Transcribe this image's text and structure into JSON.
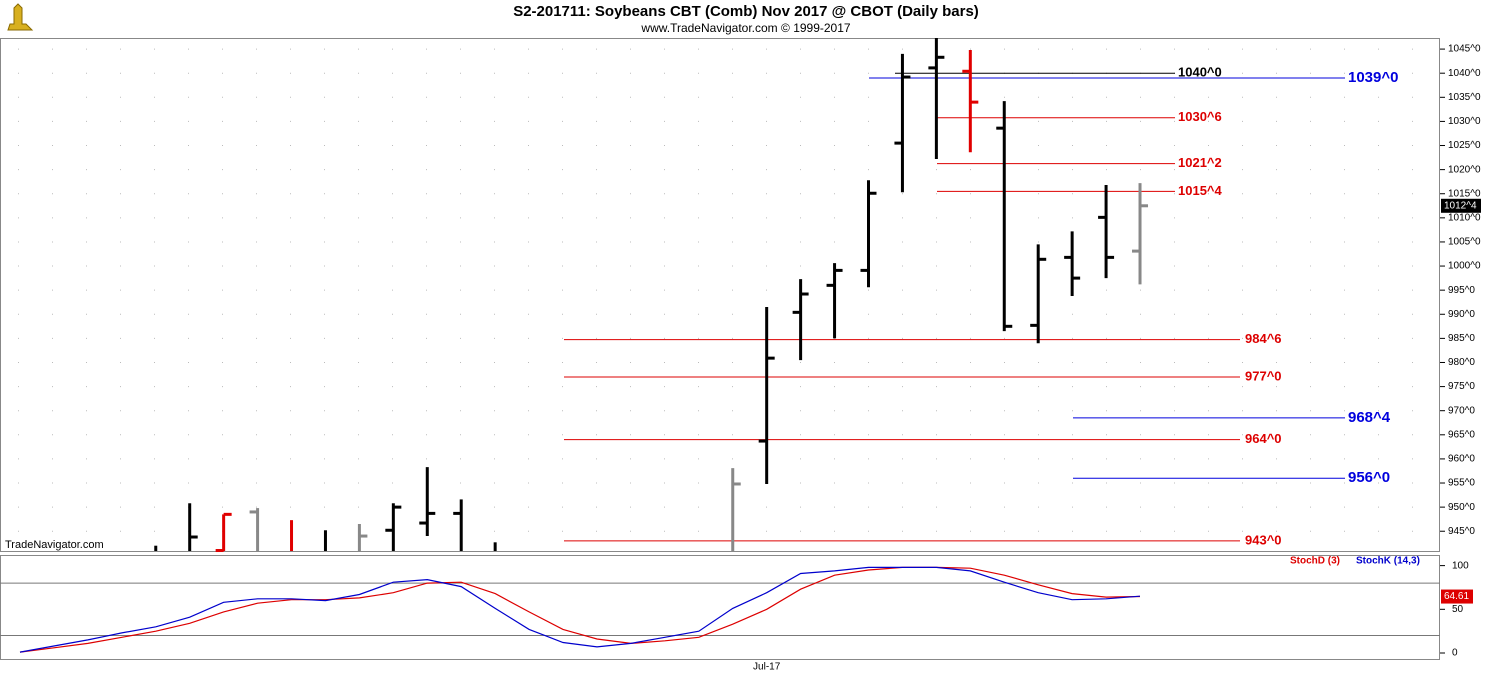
{
  "chart_data": [
    {
      "type": "ohlc",
      "title": "S2-201711:  Soybeans CBT (Comb) Nov 2017 @ CBOT  (Daily bars)",
      "subtitle": "www.TradeNavigator.com © 1999-2017",
      "watermark": "TradeNavigator.com",
      "categories": [
        null,
        null,
        null,
        null,
        null,
        null,
        null,
        null,
        null,
        null,
        null,
        null,
        null,
        null,
        null,
        null,
        null,
        null,
        null,
        null,
        null,
        null,
        "Jul-17",
        null,
        null,
        null,
        null,
        null,
        null,
        null,
        null,
        null,
        null,
        null
      ],
      "open": [
        null,
        null,
        null,
        null,
        null,
        null,
        941,
        949,
        null,
        null,
        null,
        945.2,
        946.7,
        948.7,
        null,
        null,
        null,
        null,
        null,
        null,
        null,
        null,
        963.7,
        990.4,
        996,
        999.1,
        1025.5,
        1041.1,
        1040.4,
        1028.6,
        987.7,
        1001.8,
        1010.1,
        1003.1
      ],
      "high": [
        null,
        null,
        null,
        null,
        942,
        950.8,
        948.5,
        949.8,
        947.3,
        945.2,
        946.5,
        950.8,
        958.3,
        951.6,
        942.7,
        null,
        null,
        null,
        null,
        null,
        null,
        958.1,
        991.5,
        997.3,
        1000.6,
        1017.8,
        1044,
        1047.3,
        1044.8,
        1034.2,
        1004.5,
        1007.2,
        1016.8,
        1017.2
      ],
      "low": [
        null,
        null,
        null,
        null,
        null,
        null,
        null,
        null,
        null,
        null,
        null,
        null,
        944,
        null,
        null,
        null,
        null,
        null,
        null,
        null,
        null,
        null,
        954.8,
        980.5,
        985,
        995.6,
        1015.3,
        1022.2,
        1023.6,
        986.5,
        984,
        993.8,
        997.5,
        996.2
      ],
      "close": [
        null,
        null,
        null,
        null,
        null,
        943.8,
        948.5,
        null,
        null,
        null,
        944,
        950,
        948.7,
        null,
        null,
        null,
        null,
        null,
        null,
        null,
        null,
        954.8,
        980.9,
        994.2,
        999.1,
        1015.1,
        1039.2,
        1043.3,
        1034,
        987.5,
        1001.4,
        997.5,
        1001.8,
        1012.5
      ],
      "colors": [
        "#000000",
        "#000000",
        "#000000",
        "#000000",
        "#000000",
        "#000000",
        "#e00000",
        "#888888",
        "#e00000",
        "#000000",
        "#888888",
        "#000000",
        "#000000",
        "#000000",
        "#000000",
        "#000000",
        "#000000",
        "#000000",
        "#000000",
        "#000000",
        "#000000",
        "#888888",
        "#000000",
        "#000000",
        "#000000",
        "#000000",
        "#000000",
        "#000000",
        "#e00000",
        "#000000",
        "#000000",
        "#000000",
        "#000000",
        "#888888"
      ],
      "last_price": {
        "value": 1012.5,
        "label": "1012^4"
      },
      "levels": [
        {
          "value": 1040,
          "label": "1040^0",
          "color": "#000000"
        },
        {
          "value": 1039,
          "label": "1039^0",
          "color": "#0000dd"
        },
        {
          "value": 1030.75,
          "label": "1030^6",
          "color": "#dd0000"
        },
        {
          "value": 1021.25,
          "label": "1021^2",
          "color": "#dd0000"
        },
        {
          "value": 1015.5,
          "label": "1015^4",
          "color": "#dd0000"
        },
        {
          "value": 984.75,
          "label": "984^6",
          "color": "#dd0000"
        },
        {
          "value": 977,
          "label": "977^0",
          "color": "#dd0000"
        },
        {
          "value": 968.5,
          "label": "968^4",
          "color": "#0000dd"
        },
        {
          "value": 964,
          "label": "964^0",
          "color": "#dd0000"
        },
        {
          "value": 956,
          "label": "956^0",
          "color": "#0000dd"
        },
        {
          "value": 943,
          "label": "943^0",
          "color": "#dd0000"
        }
      ],
      "ylim": [
        940.9,
        1047.3
      ],
      "yticks": [
        {
          "value": 945,
          "label": "945^0"
        },
        {
          "value": 950,
          "label": "950^0"
        },
        {
          "value": 955,
          "label": "955^0"
        },
        {
          "value": 960,
          "label": "960^0"
        },
        {
          "value": 965,
          "label": "965^0"
        },
        {
          "value": 970,
          "label": "970^0"
        },
        {
          "value": 975,
          "label": "975^0"
        },
        {
          "value": 980,
          "label": "980^0"
        },
        {
          "value": 985,
          "label": "985^0"
        },
        {
          "value": 990,
          "label": "990^0"
        },
        {
          "value": 995,
          "label": "995^0"
        },
        {
          "value": 1000,
          "label": "1000^0"
        },
        {
          "value": 1005,
          "label": "1005^0"
        },
        {
          "value": 1010,
          "label": "1010^0"
        },
        {
          "value": 1015,
          "label": "1015^0"
        },
        {
          "value": 1020,
          "label": "1020^0"
        },
        {
          "value": 1025,
          "label": "1025^0"
        },
        {
          "value": 1030,
          "label": "1030^0"
        },
        {
          "value": 1035,
          "label": "1035^0"
        },
        {
          "value": 1040,
          "label": "1040^0"
        },
        {
          "value": 1045,
          "label": "1045^0"
        }
      ],
      "grid": true
    },
    {
      "type": "line",
      "series": [
        {
          "name": "StochD (3)",
          "color": "#dd0000",
          "values": [
            1,
            6,
            11,
            18,
            25,
            34,
            47,
            57,
            61,
            61,
            63,
            69,
            80,
            81,
            68,
            47,
            27,
            16,
            11,
            14,
            18,
            33,
            50,
            73,
            89,
            95,
            98,
            98,
            97,
            89,
            78,
            68,
            64,
            64.61
          ]
        },
        {
          "name": "StochK (14,3)",
          "color": "#0000cc",
          "values": [
            1,
            8,
            15,
            23,
            30,
            41,
            58,
            62,
            62,
            60,
            67,
            81,
            84,
            76,
            51,
            27,
            12,
            7,
            11,
            18,
            25,
            51,
            69,
            91,
            94,
            98,
            98,
            98,
            94,
            81,
            69,
            61,
            62,
            65
          ]
        }
      ],
      "levels": [
        80,
        20
      ],
      "ylim": [
        -8,
        111
      ],
      "yticks": [
        0,
        50,
        100
      ]
    }
  ]
}
